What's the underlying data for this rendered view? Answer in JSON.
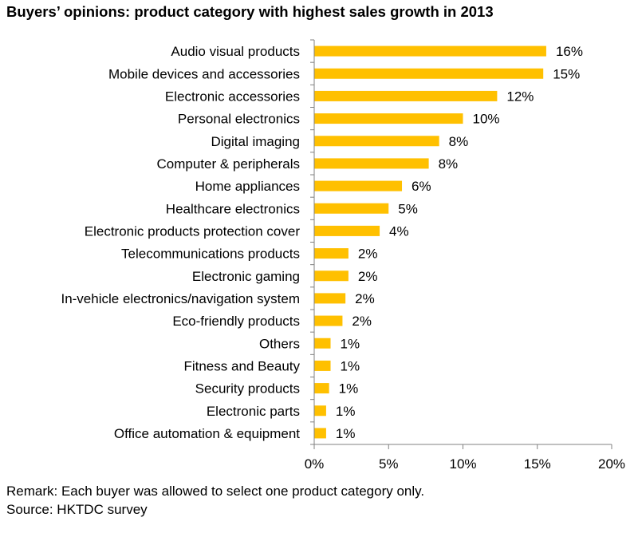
{
  "title": "Buyers’ opinions: product category with highest sales growth in 2013",
  "remark": "Remark: Each buyer was allowed to select one product category only.",
  "source": "Source: HKTDC survey",
  "colors": {
    "bar": "#FFC000",
    "axis": "#808080"
  },
  "chart_data": {
    "type": "bar",
    "orientation": "horizontal",
    "title": "Buyers’ opinions: product category with highest sales growth in 2013",
    "categories": [
      "Audio visual products",
      "Mobile devices and accessories",
      "Electronic accessories",
      "Personal electronics",
      "Digital imaging",
      "Computer & peripherals",
      "Home appliances",
      "Healthcare electronics",
      "Electronic products protection cover",
      "Telecommunications products",
      "Electronic gaming",
      "In-vehicle electronics/navigation system",
      "Eco-friendly products",
      "Others",
      "Fitness and Beauty",
      "Security products",
      "Electronic parts",
      "Office automation & equipment"
    ],
    "values": [
      15.6,
      15.4,
      12.3,
      10.0,
      8.4,
      7.7,
      5.9,
      5.0,
      4.4,
      2.3,
      2.3,
      2.1,
      1.9,
      1.1,
      1.1,
      1.0,
      0.8,
      0.8
    ],
    "value_labels": [
      "16%",
      "15%",
      "12%",
      "10%",
      "8%",
      "8%",
      "6%",
      "5%",
      "4%",
      "2%",
      "2%",
      "2%",
      "2%",
      "1%",
      "1%",
      "1%",
      "1%",
      "1%"
    ],
    "xlim": [
      0,
      20
    ],
    "xticks": [
      0,
      5,
      10,
      15,
      20
    ],
    "xtick_labels": [
      "0%",
      "5%",
      "10%",
      "15%",
      "20%"
    ],
    "grid": false,
    "legend": "none"
  }
}
